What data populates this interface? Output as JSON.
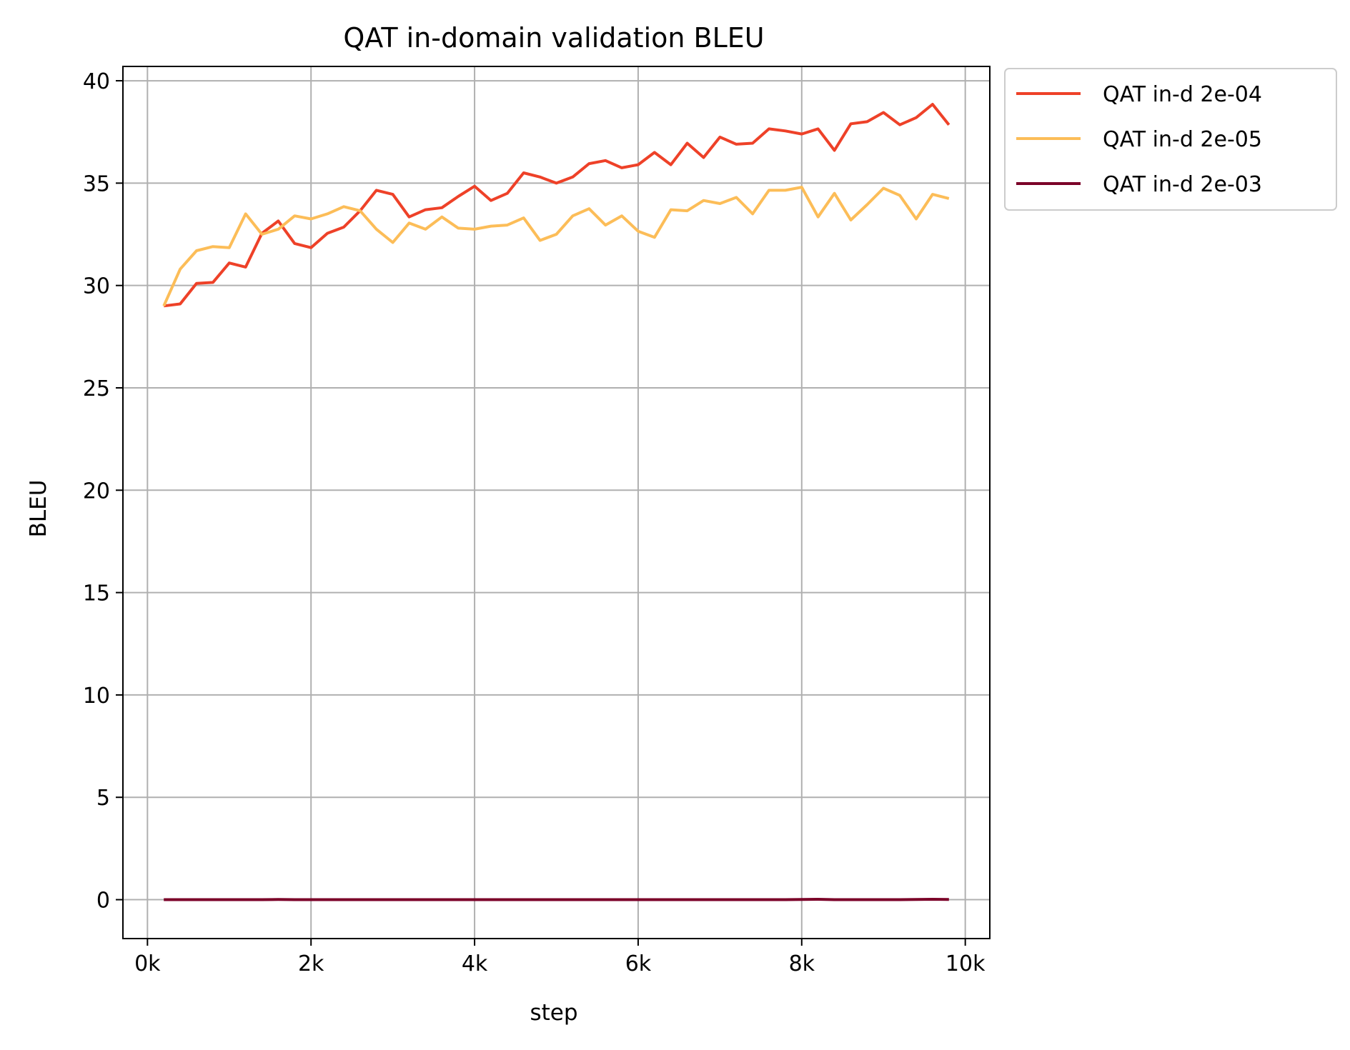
{
  "chart_data": {
    "type": "line",
    "title": "QAT in-domain validation BLEU",
    "xlabel": "step",
    "ylabel": "BLEU",
    "xlim": [
      -300,
      10300
    ],
    "ylim": [
      -1.9,
      40.7
    ],
    "xticks": [
      0,
      2000,
      4000,
      6000,
      8000,
      10000
    ],
    "xtick_labels": [
      "0k",
      "2k",
      "4k",
      "6k",
      "8k",
      "10k"
    ],
    "yticks": [
      0,
      5,
      10,
      15,
      20,
      25,
      30,
      35,
      40
    ],
    "ytick_labels": [
      "0",
      "5",
      "10",
      "15",
      "20",
      "25",
      "30",
      "35",
      "40"
    ],
    "grid": true,
    "legend_position": "outside-top-right",
    "x": [
      200,
      400,
      600,
      800,
      1000,
      1200,
      1400,
      1600,
      1800,
      2000,
      2200,
      2400,
      2600,
      2800,
      3000,
      3200,
      3400,
      3600,
      3800,
      4000,
      4200,
      4400,
      4600,
      4800,
      5000,
      5200,
      5400,
      5600,
      5800,
      6000,
      6200,
      6400,
      6600,
      6800,
      7000,
      7200,
      7400,
      7600,
      7800,
      8000,
      8200,
      8400,
      8600,
      8800,
      9000,
      9200,
      9400,
      9600,
      9800
    ],
    "series": [
      {
        "name": "QAT in-d 2e-04",
        "color": "#ee4128",
        "values": [
          29.0,
          29.1,
          30.1,
          30.15,
          31.1,
          30.9,
          32.55,
          33.15,
          32.05,
          31.85,
          32.55,
          32.85,
          33.65,
          34.65,
          34.45,
          33.35,
          33.7,
          33.8,
          34.35,
          34.85,
          34.15,
          34.5,
          35.5,
          35.3,
          35.0,
          35.3,
          35.95,
          36.1,
          35.75,
          35.9,
          36.5,
          35.9,
          36.95,
          36.25,
          37.25,
          36.9,
          36.95,
          37.65,
          37.55,
          37.4,
          37.65,
          36.6,
          37.9,
          38.0,
          38.45,
          37.85,
          38.2,
          38.85,
          37.85
        ]
      },
      {
        "name": "QAT in-d 2e-05",
        "color": "#fcbd58",
        "values": [
          29.0,
          30.8,
          31.7,
          31.9,
          31.85,
          33.5,
          32.5,
          32.75,
          33.4,
          33.25,
          33.5,
          33.85,
          33.65,
          32.75,
          32.1,
          33.05,
          32.75,
          33.35,
          32.8,
          32.75,
          32.9,
          32.95,
          33.3,
          32.2,
          32.5,
          33.4,
          33.75,
          32.95,
          33.4,
          32.65,
          32.35,
          33.7,
          33.65,
          34.15,
          34.0,
          34.3,
          33.5,
          34.65,
          34.65,
          34.8,
          33.35,
          34.5,
          33.2,
          33.95,
          34.75,
          34.4,
          33.25,
          34.45,
          34.25
        ]
      },
      {
        "name": "QAT in-d 2e-03",
        "color": "#7b0028",
        "values": [
          0.0,
          0.0,
          0.0,
          0.0,
          0.0,
          0.0,
          0.0,
          0.01,
          0.0,
          0.0,
          0.0,
          0.0,
          0.0,
          0.0,
          0.0,
          0.0,
          0.0,
          0.0,
          0.0,
          0.0,
          0.0,
          0.0,
          0.0,
          0.0,
          0.0,
          0.0,
          0.0,
          0.0,
          0.0,
          0.0,
          0.0,
          0.0,
          0.0,
          0.0,
          0.0,
          0.0,
          0.0,
          0.0,
          0.0,
          0.01,
          0.02,
          0.0,
          0.0,
          0.0,
          0.0,
          0.0,
          0.01,
          0.02,
          0.01
        ]
      }
    ]
  }
}
